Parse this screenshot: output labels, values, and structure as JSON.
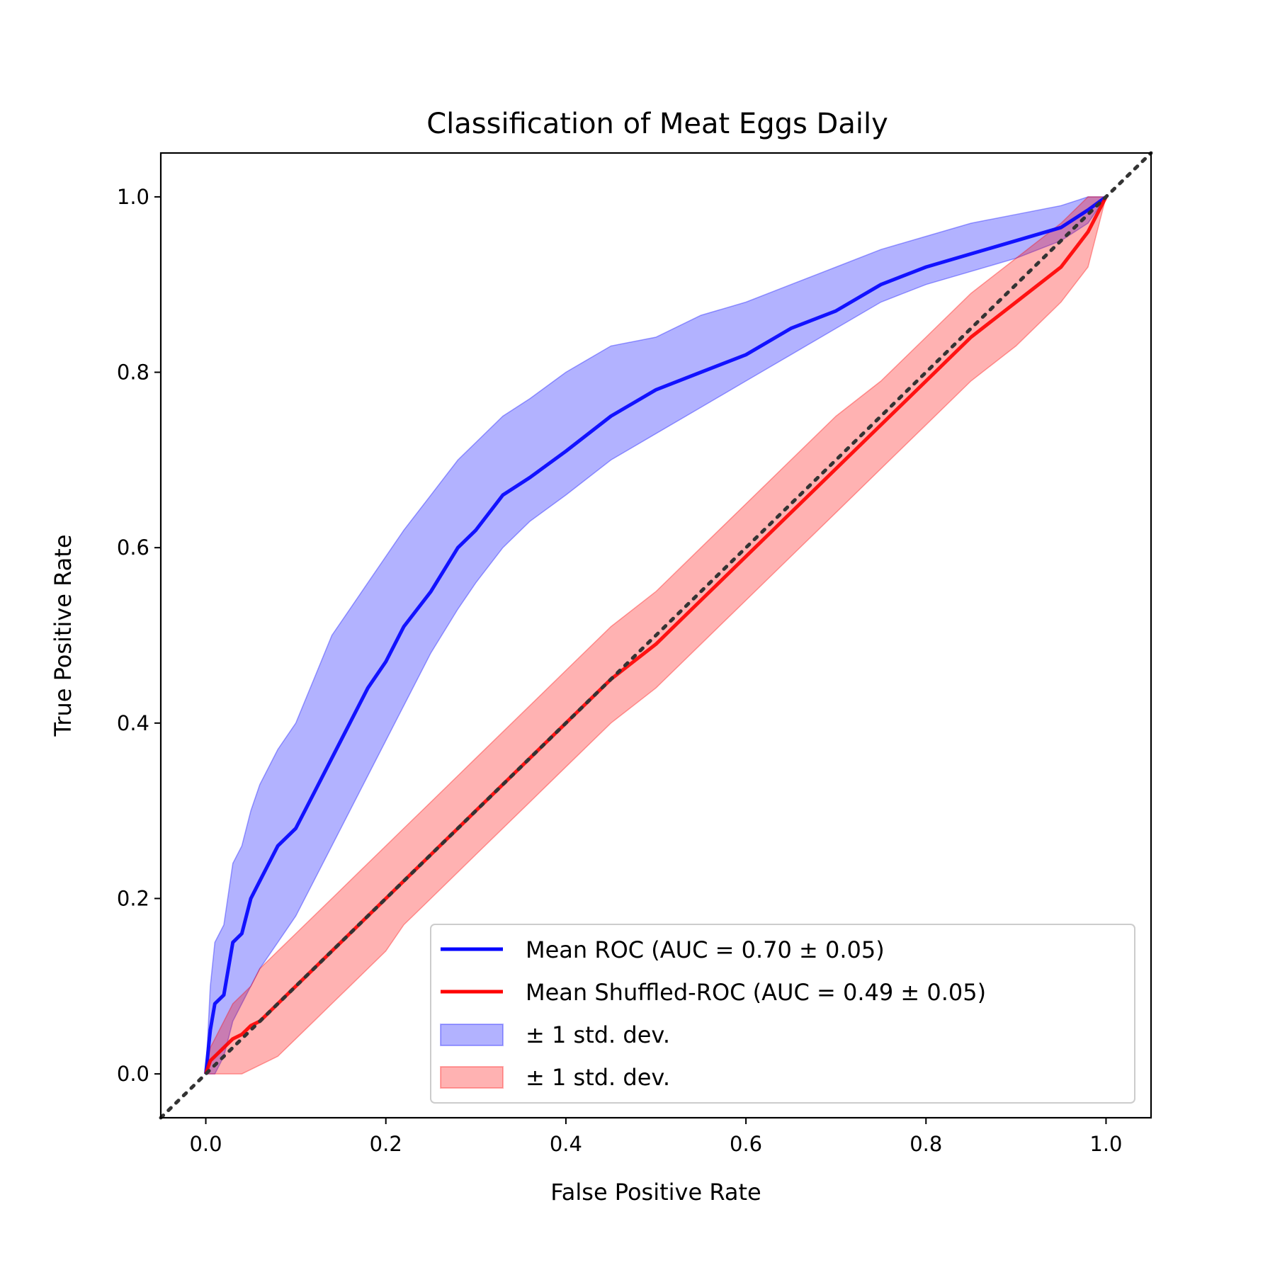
{
  "chart_data": {
    "type": "line",
    "title": "Classification of Meat Eggs Daily",
    "xlabel": "False Positive Rate",
    "ylabel": "True Positive Rate",
    "xlim": [
      -0.05,
      1.05
    ],
    "ylim": [
      -0.05,
      1.05
    ],
    "xticks": [
      0.0,
      0.2,
      0.4,
      0.6,
      0.8,
      1.0
    ],
    "yticks": [
      0.0,
      0.2,
      0.4,
      0.6,
      0.8,
      1.0
    ],
    "xtick_labels": [
      "0.0",
      "0.2",
      "0.4",
      "0.6",
      "0.8",
      "1.0"
    ],
    "ytick_labels": [
      "0.0",
      "0.2",
      "0.4",
      "0.6",
      "0.8",
      "1.0"
    ],
    "grid": false,
    "legend_position": "lower-right",
    "x": [
      0,
      0.005,
      0.01,
      0.02,
      0.03,
      0.04,
      0.05,
      0.06,
      0.08,
      0.1,
      0.12,
      0.14,
      0.16,
      0.18,
      0.2,
      0.22,
      0.25,
      0.28,
      0.3,
      0.33,
      0.36,
      0.4,
      0.45,
      0.5,
      0.55,
      0.6,
      0.65,
      0.7,
      0.75,
      0.8,
      0.85,
      0.9,
      0.95,
      0.98,
      1.0
    ],
    "series": [
      {
        "name": "Mean ROC (AUC = 0.70 ± 0.05)",
        "color": "#0000ff",
        "kind": "line",
        "y": [
          0,
          0.05,
          0.08,
          0.09,
          0.15,
          0.16,
          0.2,
          0.22,
          0.26,
          0.28,
          0.32,
          0.36,
          0.4,
          0.44,
          0.47,
          0.51,
          0.55,
          0.6,
          0.62,
          0.66,
          0.68,
          0.71,
          0.75,
          0.78,
          0.8,
          0.82,
          0.85,
          0.87,
          0.9,
          0.92,
          0.935,
          0.95,
          0.965,
          0.985,
          1.0
        ]
      },
      {
        "name": "Mean Shuffled-ROC (AUC = 0.49 ± 0.05)",
        "color": "#ff0000",
        "kind": "line",
        "y": [
          0,
          0.015,
          0.02,
          0.03,
          0.04,
          0.045,
          0.055,
          0.06,
          0.08,
          0.1,
          0.12,
          0.14,
          0.16,
          0.18,
          0.2,
          0.22,
          0.25,
          0.28,
          0.3,
          0.33,
          0.36,
          0.4,
          0.45,
          0.49,
          0.54,
          0.59,
          0.64,
          0.69,
          0.74,
          0.79,
          0.84,
          0.88,
          0.92,
          0.96,
          1.0
        ]
      },
      {
        "name": "± 1 std. dev.",
        "color": "#0000ff",
        "kind": "band",
        "lower": [
          0,
          0.0,
          0.0,
          0.02,
          0.06,
          0.08,
          0.1,
          0.12,
          0.15,
          0.18,
          0.22,
          0.26,
          0.3,
          0.34,
          0.38,
          0.42,
          0.48,
          0.53,
          0.56,
          0.6,
          0.63,
          0.66,
          0.7,
          0.73,
          0.76,
          0.79,
          0.82,
          0.85,
          0.88,
          0.9,
          0.915,
          0.93,
          0.95,
          0.97,
          1.0
        ],
        "upper": [
          0,
          0.1,
          0.15,
          0.17,
          0.24,
          0.26,
          0.3,
          0.33,
          0.37,
          0.4,
          0.45,
          0.5,
          0.53,
          0.56,
          0.59,
          0.62,
          0.66,
          0.7,
          0.72,
          0.75,
          0.77,
          0.8,
          0.83,
          0.84,
          0.865,
          0.88,
          0.9,
          0.92,
          0.94,
          0.955,
          0.97,
          0.98,
          0.99,
          1.0,
          1.0
        ]
      },
      {
        "name": "± 1 std. dev.",
        "color": "#ff0000",
        "kind": "band",
        "lower": [
          0,
          0.0,
          0.0,
          0.0,
          0.0,
          0.0,
          0.005,
          0.01,
          0.02,
          0.04,
          0.06,
          0.08,
          0.1,
          0.12,
          0.14,
          0.17,
          0.2,
          0.23,
          0.25,
          0.28,
          0.31,
          0.35,
          0.4,
          0.44,
          0.49,
          0.54,
          0.59,
          0.64,
          0.69,
          0.74,
          0.79,
          0.83,
          0.88,
          0.92,
          1.0
        ],
        "upper": [
          0,
          0.03,
          0.04,
          0.06,
          0.08,
          0.09,
          0.1,
          0.12,
          0.14,
          0.16,
          0.18,
          0.2,
          0.22,
          0.24,
          0.26,
          0.28,
          0.31,
          0.34,
          0.36,
          0.39,
          0.42,
          0.46,
          0.51,
          0.55,
          0.6,
          0.65,
          0.7,
          0.75,
          0.79,
          0.84,
          0.89,
          0.93,
          0.97,
          1.0,
          1.0
        ]
      }
    ],
    "reference_line": {
      "x": [
        -0.05,
        1.05
      ],
      "y": [
        -0.05,
        1.05
      ],
      "color": "#333333",
      "style": "dotted"
    }
  }
}
